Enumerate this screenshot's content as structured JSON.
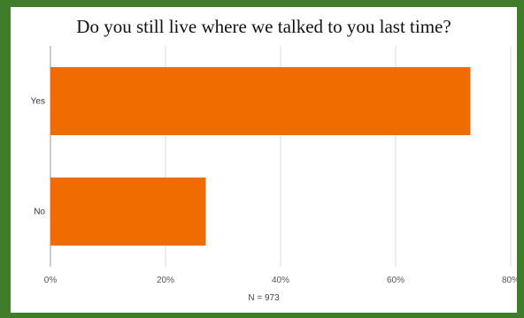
{
  "chart_data": {
    "type": "bar",
    "orientation": "horizontal",
    "title": "Do you still live where we talked to you last time?",
    "categories": [
      "Yes",
      "No"
    ],
    "values": [
      73,
      27
    ],
    "value_unit": "%",
    "xlim": [
      0,
      80
    ],
    "x_ticks": [
      "0%",
      "20%",
      "40%",
      "60%",
      "80%"
    ],
    "x_tick_values": [
      0,
      20,
      40,
      60,
      80
    ],
    "grid": true,
    "bar_color": "#f06c00",
    "note": "N = 973"
  }
}
